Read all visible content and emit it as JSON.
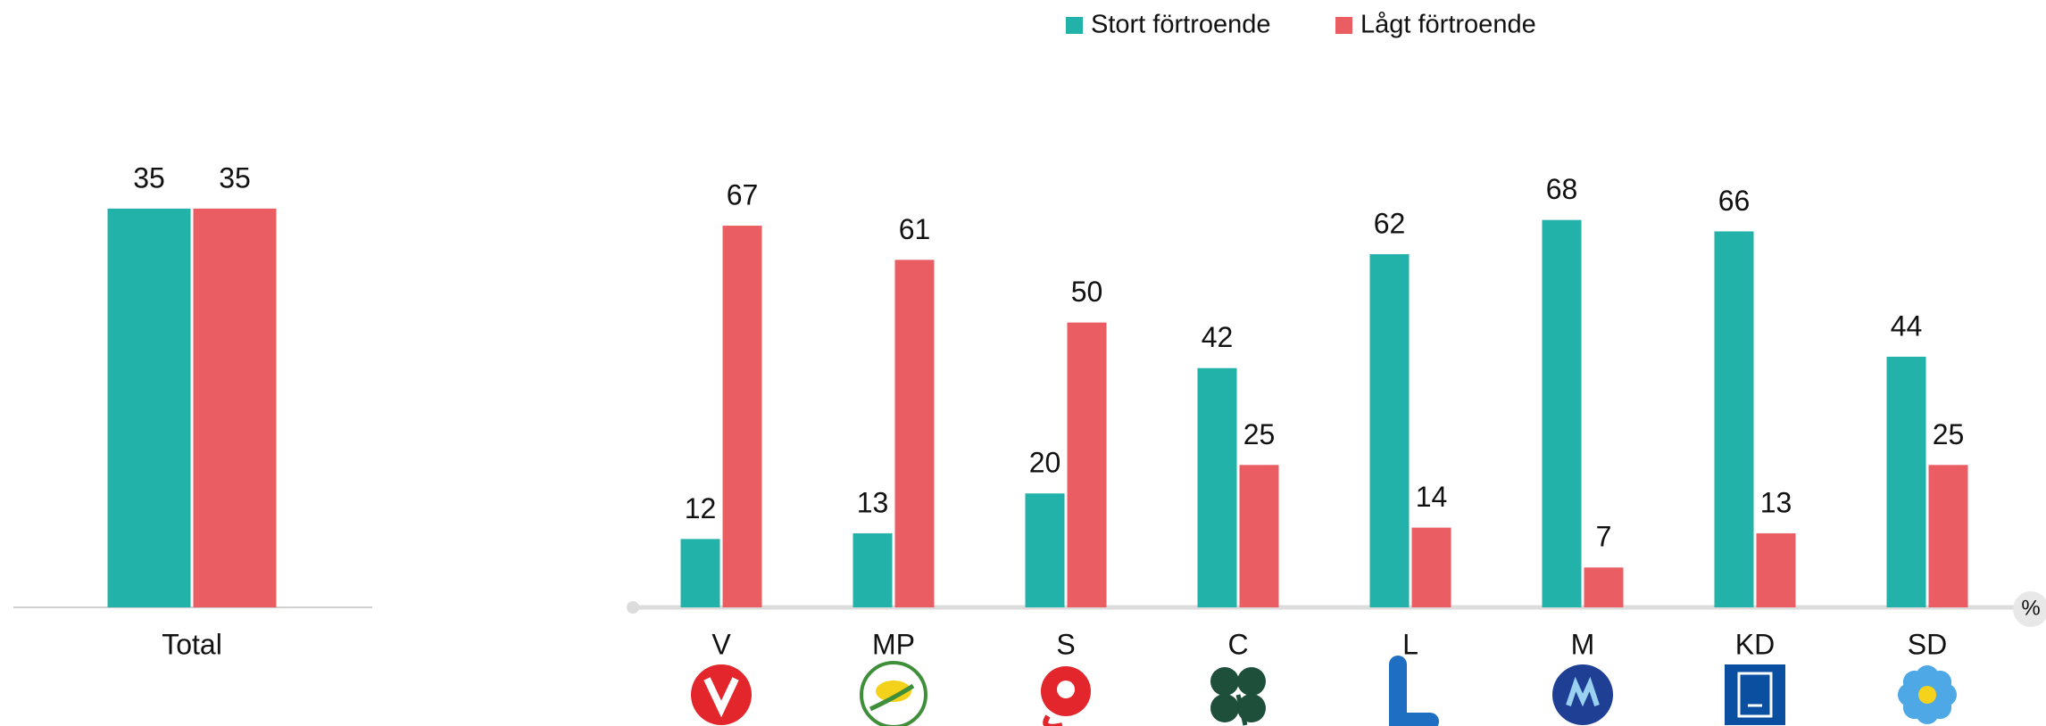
{
  "chart_data": [
    {
      "type": "bar",
      "categories": [
        "Total"
      ],
      "series": [
        {
          "values": [
            35
          ]
        },
        {
          "values": [
            35
          ]
        }
      ],
      "ylim": [
        0,
        40
      ]
    },
    {
      "type": "bar",
      "categories": [
        "V",
        "MP",
        "S",
        "C",
        "L",
        "M",
        "KD",
        "SD"
      ],
      "series": [
        {
          "name": "Stort förtroende",
          "color": "#22b2aa",
          "values": [
            12,
            13,
            20,
            42,
            62,
            68,
            66,
            44
          ]
        },
        {
          "name": "Lågt förtroende",
          "color": "#ea5e63",
          "values": [
            67,
            61,
            50,
            25,
            14,
            7,
            13,
            25
          ]
        }
      ],
      "ylim": [
        0,
        80
      ],
      "unit": "%"
    }
  ]
}
